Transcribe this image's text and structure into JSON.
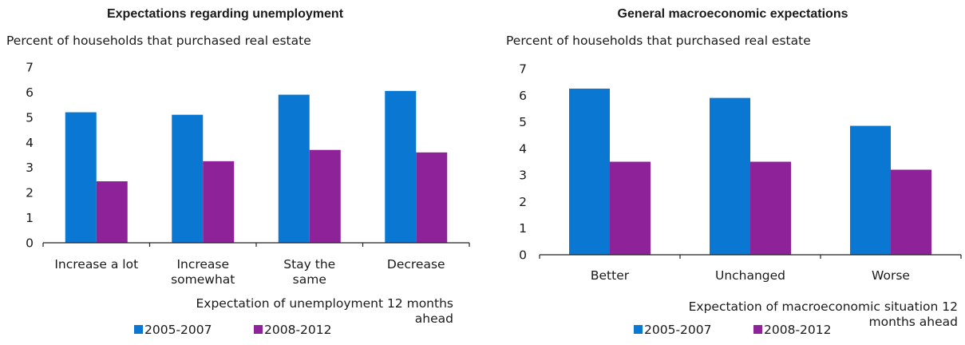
{
  "colors": {
    "series1": "#0a78d2",
    "series2": "#8e2299",
    "axis": "#222222",
    "text": "#1a1a1a"
  },
  "chart_data": [
    {
      "type": "bar",
      "title": "Expectations regarding unemployment",
      "units": "Percent of households that purchased real estate",
      "categories": [
        [
          "Increase a lot"
        ],
        [
          "Increase",
          "somewhat"
        ],
        [
          "Stay the",
          "same"
        ],
        [
          "Decrease"
        ]
      ],
      "xlabel": [
        "Expectation of unemployment 12 months",
        "ahead"
      ],
      "ylim": [
        0,
        7
      ],
      "yticks": [
        "0",
        "1",
        "2",
        "3",
        "4",
        "5",
        "6",
        "7"
      ],
      "grid": false,
      "legend_position": "bottom-left",
      "series": [
        {
          "name": "2005-2007",
          "values": [
            5.2,
            5.1,
            5.9,
            6.05
          ]
        },
        {
          "name": "2008-2012",
          "values": [
            2.45,
            3.25,
            3.7,
            3.6
          ]
        }
      ]
    },
    {
      "type": "bar",
      "title": "General macroeconomic expectations",
      "units": "Percent of households that purchased real estate",
      "categories": [
        [
          "Better"
        ],
        [
          "Unchanged"
        ],
        [
          "Worse"
        ]
      ],
      "xlabel": [
        "Expectation of macroeconomic situation 12",
        "months ahead"
      ],
      "ylim": [
        0,
        7
      ],
      "yticks": [
        "0",
        "1",
        "2",
        "3",
        "4",
        "5",
        "6",
        "7"
      ],
      "grid": false,
      "legend_position": "bottom-left",
      "series": [
        {
          "name": "2005-2007",
          "values": [
            6.25,
            5.9,
            4.85
          ]
        },
        {
          "name": "2008-2012",
          "values": [
            3.5,
            3.5,
            3.2
          ]
        }
      ]
    }
  ]
}
